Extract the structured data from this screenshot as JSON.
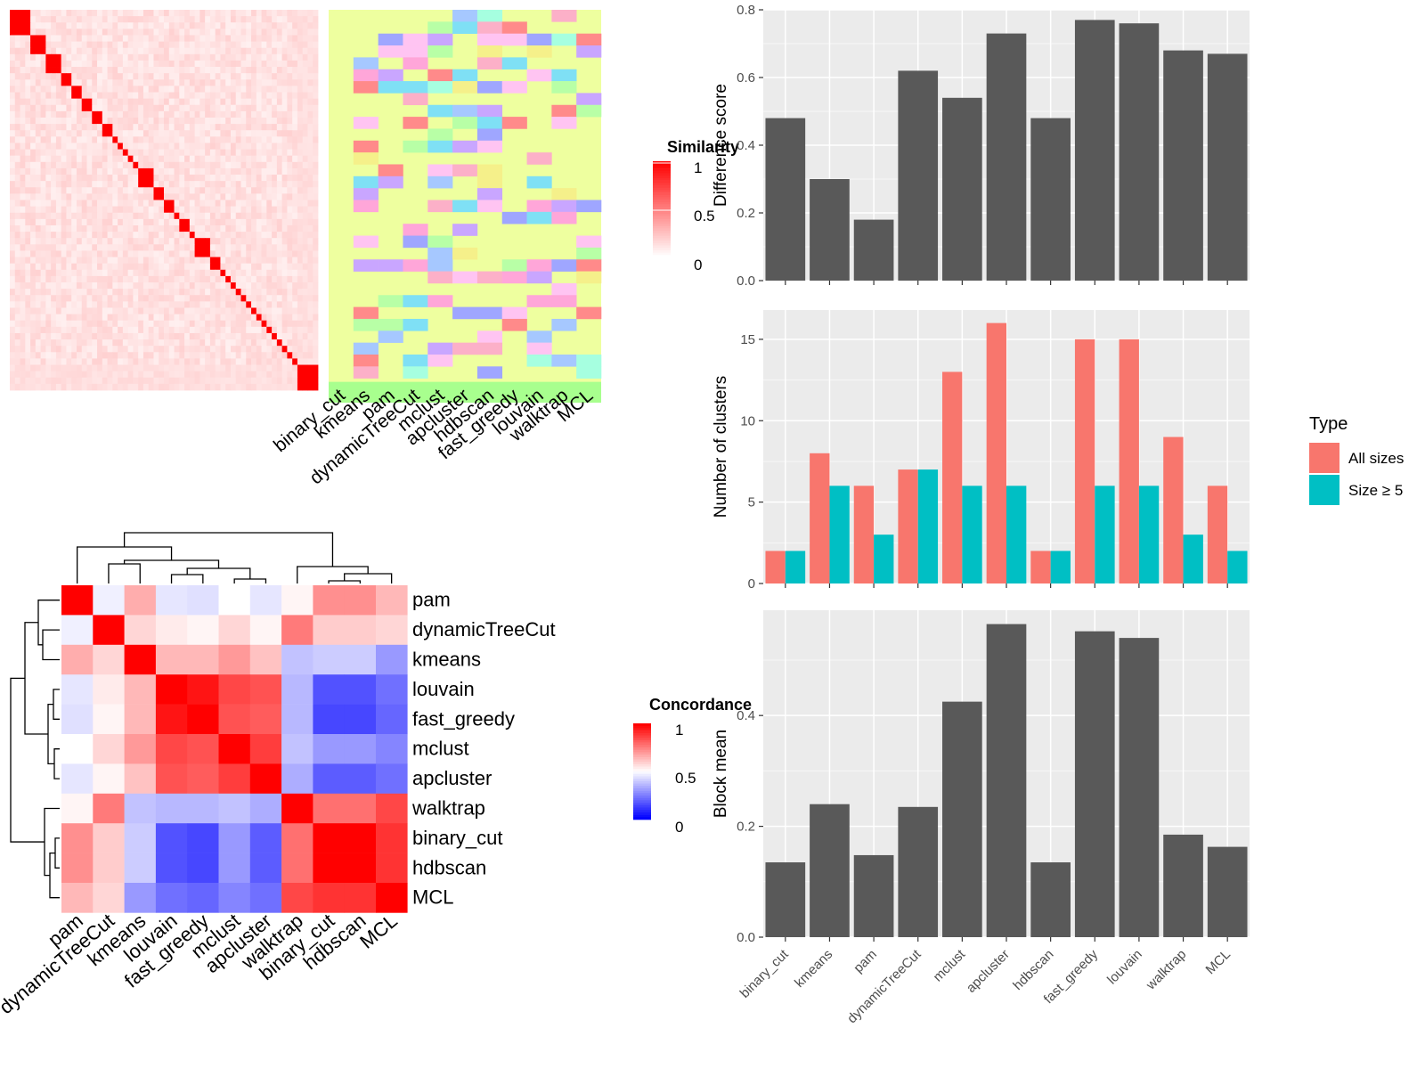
{
  "chart_data": [
    {
      "type": "heatmap",
      "panel": "similarity",
      "legend_title": "Similarity",
      "legend_ticks": [
        "1",
        "0.5",
        "0"
      ],
      "block_sizes": [
        4,
        3,
        3,
        2,
        2,
        2,
        2,
        2,
        1,
        1,
        1,
        1,
        1,
        3,
        2,
        2,
        1,
        2,
        1,
        3,
        2,
        1,
        1,
        1,
        1,
        1,
        1,
        1,
        1,
        1,
        1,
        1,
        1,
        1,
        1,
        1,
        4
      ],
      "colors": {
        "high": "#ff0000",
        "low": "#ffffff"
      }
    },
    {
      "type": "heatmap",
      "panel": "cluster-assignments",
      "methods": [
        "binary_cut",
        "kmeans",
        "pam",
        "dynamicTreeCut",
        "mclust",
        "apcluster",
        "hdbscan",
        "fast_greedy",
        "louvain",
        "walktrap",
        "MCL"
      ],
      "background_color": "#eeff9f",
      "last_block_color": "#a8ff8e"
    },
    {
      "type": "heatmap",
      "panel": "concordance",
      "legend_title": "Concordance",
      "legend_ticks": [
        "1",
        "0.5",
        "0"
      ],
      "labels": [
        "pam",
        "dynamicTreeCut",
        "kmeans",
        "louvain",
        "fast_greedy",
        "mclust",
        "apcluster",
        "walktrap",
        "binary_cut",
        "hdbscan",
        "MCL"
      ],
      "values": [
        [
          1.0,
          0.47,
          0.66,
          0.45,
          0.44,
          0.5,
          0.45,
          0.52,
          0.72,
          0.72,
          0.64
        ],
        [
          0.47,
          1.0,
          0.58,
          0.54,
          0.52,
          0.58,
          0.52,
          0.76,
          0.6,
          0.6,
          0.58
        ],
        [
          0.66,
          0.58,
          1.0,
          0.64,
          0.64,
          0.7,
          0.62,
          0.38,
          0.4,
          0.4,
          0.3
        ],
        [
          0.45,
          0.54,
          0.64,
          1.0,
          0.96,
          0.86,
          0.84,
          0.36,
          0.16,
          0.16,
          0.22
        ],
        [
          0.44,
          0.52,
          0.64,
          0.96,
          1.0,
          0.84,
          0.82,
          0.36,
          0.14,
          0.14,
          0.2
        ],
        [
          0.5,
          0.58,
          0.7,
          0.86,
          0.84,
          1.0,
          0.88,
          0.38,
          0.3,
          0.3,
          0.26
        ],
        [
          0.45,
          0.52,
          0.62,
          0.84,
          0.82,
          0.88,
          1.0,
          0.34,
          0.18,
          0.18,
          0.22
        ],
        [
          0.52,
          0.76,
          0.38,
          0.36,
          0.36,
          0.38,
          0.34,
          1.0,
          0.78,
          0.78,
          0.86
        ],
        [
          0.72,
          0.6,
          0.4,
          0.16,
          0.14,
          0.3,
          0.18,
          0.78,
          1.0,
          1.0,
          0.9
        ],
        [
          0.72,
          0.6,
          0.4,
          0.16,
          0.14,
          0.3,
          0.18,
          0.78,
          1.0,
          1.0,
          0.9
        ],
        [
          0.64,
          0.58,
          0.3,
          0.22,
          0.2,
          0.26,
          0.22,
          0.86,
          0.9,
          0.9,
          1.0
        ]
      ],
      "colors": {
        "high": "#ff0000",
        "mid": "#ffffff",
        "low": "#0000ff"
      }
    },
    {
      "type": "bar",
      "panel": "difference-score",
      "categories": [
        "binary_cut",
        "kmeans",
        "pam",
        "dynamicTreeCut",
        "mclust",
        "apcluster",
        "hdbscan",
        "fast_greedy",
        "louvain",
        "walktrap",
        "MCL"
      ],
      "values": [
        0.48,
        0.3,
        0.18,
        0.62,
        0.54,
        0.73,
        0.48,
        0.77,
        0.76,
        0.68,
        0.67
      ],
      "ylabel": "Difference score",
      "ylim": [
        0,
        0.8
      ],
      "yticks": [
        0.0,
        0.2,
        0.4,
        0.6,
        0.8
      ],
      "ytick_labels": [
        "0.0",
        "0.2",
        "0.4",
        "0.6",
        "0.8"
      ],
      "bar_color": "#595959"
    },
    {
      "type": "bar",
      "panel": "number-of-clusters",
      "categories": [
        "binary_cut",
        "kmeans",
        "pam",
        "dynamicTreeCut",
        "mclust",
        "apcluster",
        "hdbscan",
        "fast_greedy",
        "louvain",
        "walktrap",
        "MCL"
      ],
      "series": [
        {
          "name": "All sizes",
          "values": [
            2,
            8,
            6,
            7,
            13,
            16,
            2,
            15,
            15,
            9,
            6
          ],
          "color": "#f8766d"
        },
        {
          "name": "Size ≥ 5",
          "values": [
            2,
            6,
            3,
            7,
            6,
            6,
            2,
            6,
            6,
            3,
            2
          ],
          "color": "#00bfc4"
        }
      ],
      "ylabel": "Number of clusters",
      "ylim": [
        0,
        16.8
      ],
      "yticks": [
        0,
        5,
        10,
        15
      ],
      "ytick_labels": [
        "0",
        "5",
        "10",
        "15"
      ],
      "legend_title": "Type",
      "legend_position": "right"
    },
    {
      "type": "bar",
      "panel": "block-mean",
      "categories": [
        "binary_cut",
        "kmeans",
        "pam",
        "dynamicTreeCut",
        "mclust",
        "apcluster",
        "hdbscan",
        "fast_greedy",
        "louvain",
        "walktrap",
        "MCL"
      ],
      "values": [
        0.135,
        0.24,
        0.148,
        0.235,
        0.425,
        0.565,
        0.135,
        0.552,
        0.54,
        0.185,
        0.163
      ],
      "ylabel": "Block mean",
      "ylim": [
        0,
        0.59
      ],
      "yticks": [
        0.0,
        0.2,
        0.4
      ],
      "ytick_labels": [
        "0.0",
        "0.2",
        "0.4"
      ],
      "bar_color": "#595959"
    }
  ]
}
